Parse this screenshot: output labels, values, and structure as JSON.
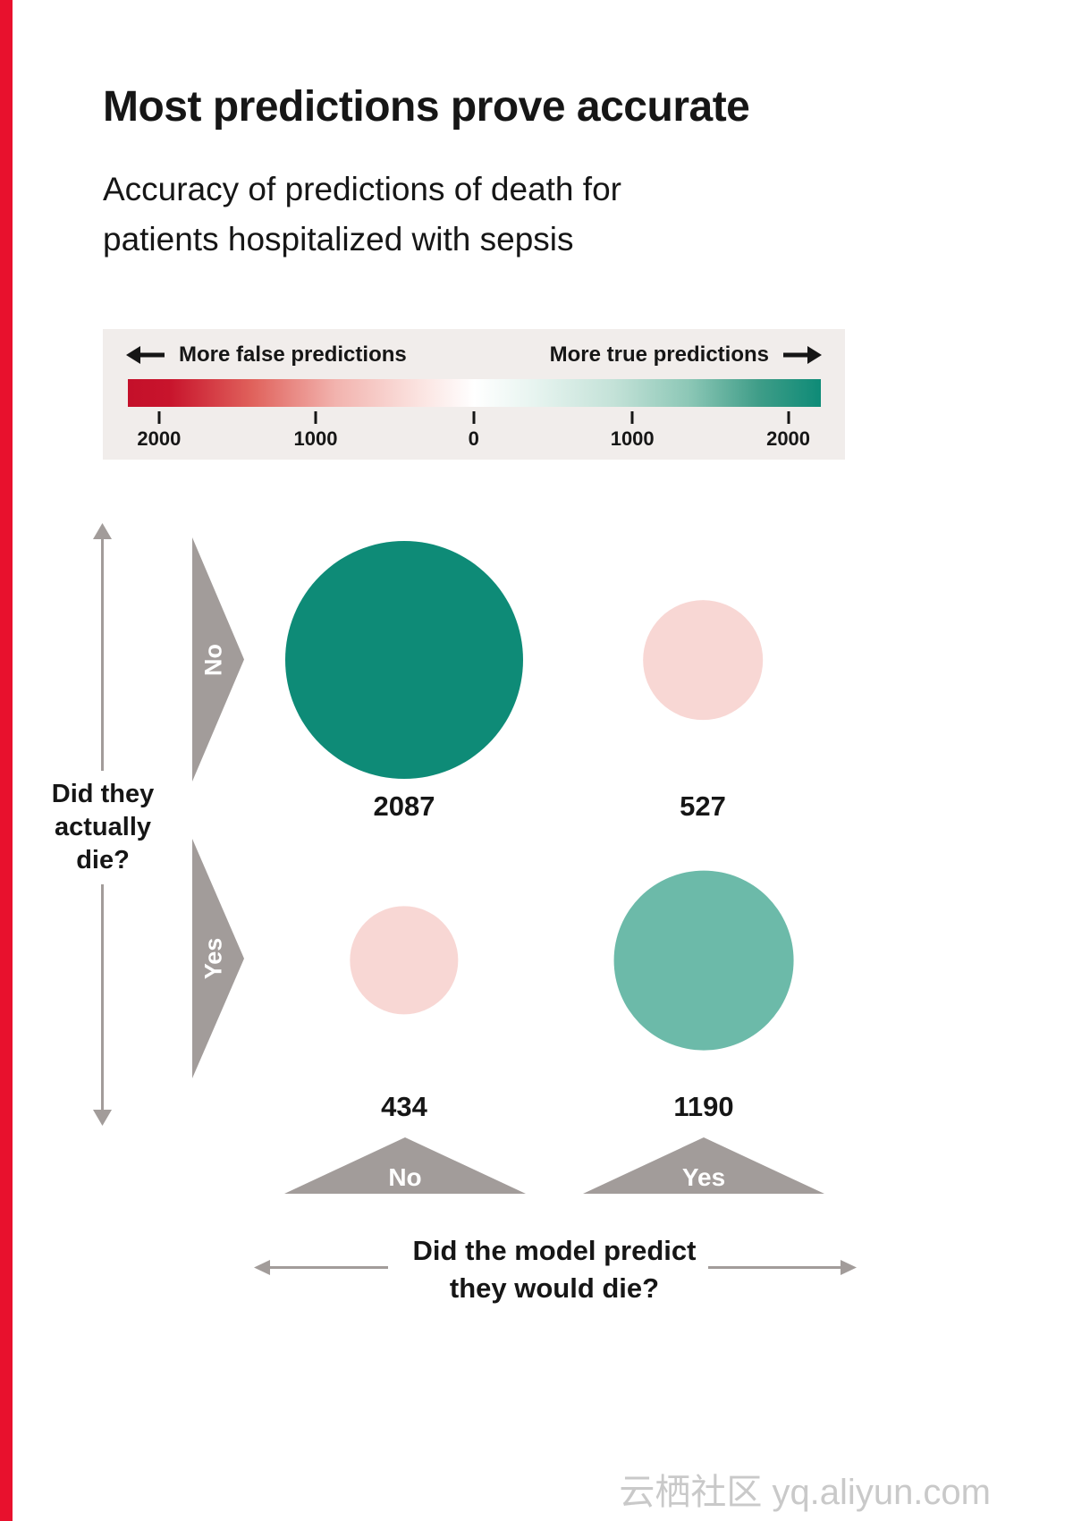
{
  "page": {
    "title": "Most predictions prove accurate",
    "subtitle_lines": [
      "Accuracy of predictions of death for",
      "patients hospitalized with sepsis"
    ],
    "watermark": "云栖社区 yq.aliyun.com"
  },
  "legend": {
    "left_label": "More false predictions",
    "right_label": "More true predictions",
    "tick_labels": [
      "2000",
      "1000",
      "0",
      "1000",
      "2000"
    ]
  },
  "axes": {
    "y_question_lines": [
      "Did they",
      "actually",
      "die?"
    ],
    "x_question_lines": [
      "Did the model predict",
      "they would die?"
    ],
    "row_labels": [
      "No",
      "Yes"
    ],
    "col_labels": [
      "No",
      "Yes"
    ]
  },
  "chart_data": {
    "type": "scatter",
    "subtype": "bubble confusion matrix",
    "title": "Most predictions prove accurate",
    "subtitle": "Accuracy of predictions of death for patients hospitalized with sepsis",
    "x_axis_question": "Did the model predict they would die?",
    "y_axis_question": "Did they actually die?",
    "x_categories": [
      "No",
      "Yes"
    ],
    "y_categories": [
      "No",
      "Yes"
    ],
    "cells": [
      {
        "actual": "No",
        "predicted": "No",
        "value": 2087,
        "meaning": "true prediction",
        "color": "#0e8b77"
      },
      {
        "actual": "No",
        "predicted": "Yes",
        "value": 527,
        "meaning": "false prediction",
        "color": "#f8d7d4"
      },
      {
        "actual": "Yes",
        "predicted": "No",
        "value": 434,
        "meaning": "false prediction",
        "color": "#f8d7d4"
      },
      {
        "actual": "Yes",
        "predicted": "Yes",
        "value": 1190,
        "meaning": "true prediction",
        "color": "#6cbaa9"
      }
    ],
    "color_scale": {
      "left_label": "More false predictions",
      "right_label": "More true predictions",
      "tick_labels": [
        "2000",
        "1000",
        "0",
        "1000",
        "2000"
      ],
      "min_color": "#c4102a",
      "mid_color": "#ffffff",
      "max_color": "#0e8b77"
    }
  },
  "colors": {
    "accent_stripe": "#e8112d",
    "gray_arrow": "#a29c9a",
    "legend_background": "#f1edeb"
  }
}
